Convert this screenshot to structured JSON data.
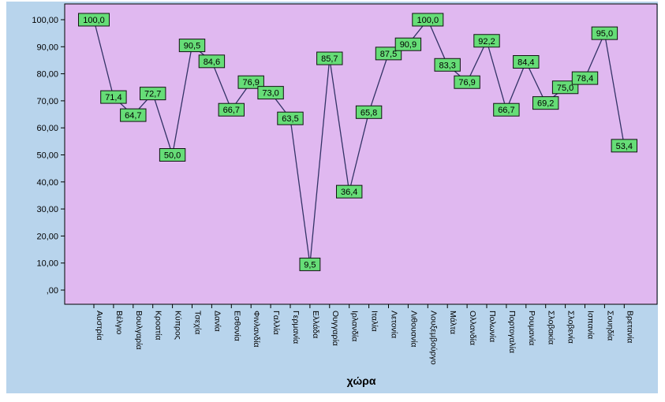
{
  "chart_data": {
    "type": "line",
    "title": "",
    "xlabel": "χώρα",
    "ylabel": "",
    "ylim": [
      0,
      100
    ],
    "yticks": [
      ",00",
      "10,00",
      "20,00",
      "30,00",
      "40,00",
      "50,00",
      "60,00",
      "70,00",
      "80,00",
      "90,00",
      "100,00"
    ],
    "grid": false,
    "legend": "none",
    "categories": [
      "Αυστρία",
      "Βέλγιο",
      "Βουλγαρία",
      "Κροατία",
      "Κύπρος",
      "Τσεχία",
      "Δανία",
      "Εσθονία",
      "Φινλανδία",
      "Γαλλία",
      "Γερμανία",
      "Ελλάδα",
      "Ουγγαρία",
      "Ιρλανδία",
      "Ιταλία",
      "Λετονία",
      "Λιθουανία",
      "Λουξεμβούργο",
      "Μάλτα",
      "Ολλανδία",
      "Πολωνία",
      "Πορτογαλία",
      "Ρουμανία",
      "Σλοβακία",
      "Σλοβενία",
      "Ισπανία",
      "Σουηδία",
      "Βρετανία"
    ],
    "values": [
      100.0,
      71.4,
      64.7,
      72.7,
      50.0,
      90.5,
      84.6,
      66.7,
      76.9,
      73.0,
      63.5,
      9.5,
      85.7,
      36.4,
      65.8,
      87.5,
      90.9,
      100.0,
      83.3,
      76.9,
      92.2,
      66.7,
      84.4,
      69.2,
      75.0,
      78.4,
      95.0,
      53.4
    ],
    "value_labels": [
      "100,0",
      "71,4",
      "64,7",
      "72,7",
      "50,0",
      "90,5",
      "84,6",
      "66,7",
      "76,9",
      "73,0",
      "63,5",
      "9,5",
      "85,7",
      "36,4",
      "65,8",
      "87,5",
      "90,9",
      "100,0",
      "83,3",
      "76,9",
      "92,2",
      "66,7",
      "84,4",
      "69,2",
      "75,0",
      "78,4",
      "95,0",
      "53,4"
    ]
  },
  "colors": {
    "outer_background": "#b8d4ec",
    "plot_background": "#e0b8f0",
    "line": "#333366",
    "label_fill": "#66dd77",
    "label_border": "#111111",
    "text": "#000000"
  }
}
